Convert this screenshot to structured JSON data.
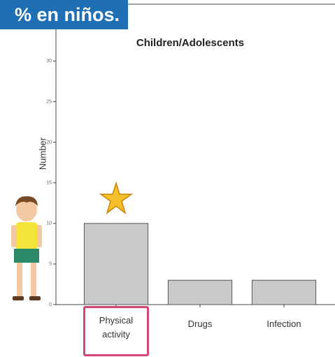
{
  "banner": "% en niños.",
  "chart_data": {
    "type": "bar",
    "title": "Children/Adolescents",
    "y_label": "Number",
    "categories": [
      "Physical activity",
      "Drugs",
      "Infection"
    ],
    "values": [
      10,
      3,
      3
    ],
    "color": "#c8c9cb",
    "ylim": [
      0,
      37
    ],
    "yticks": [
      0,
      5,
      10,
      15,
      20,
      25,
      30
    ],
    "grid": false
  }
}
